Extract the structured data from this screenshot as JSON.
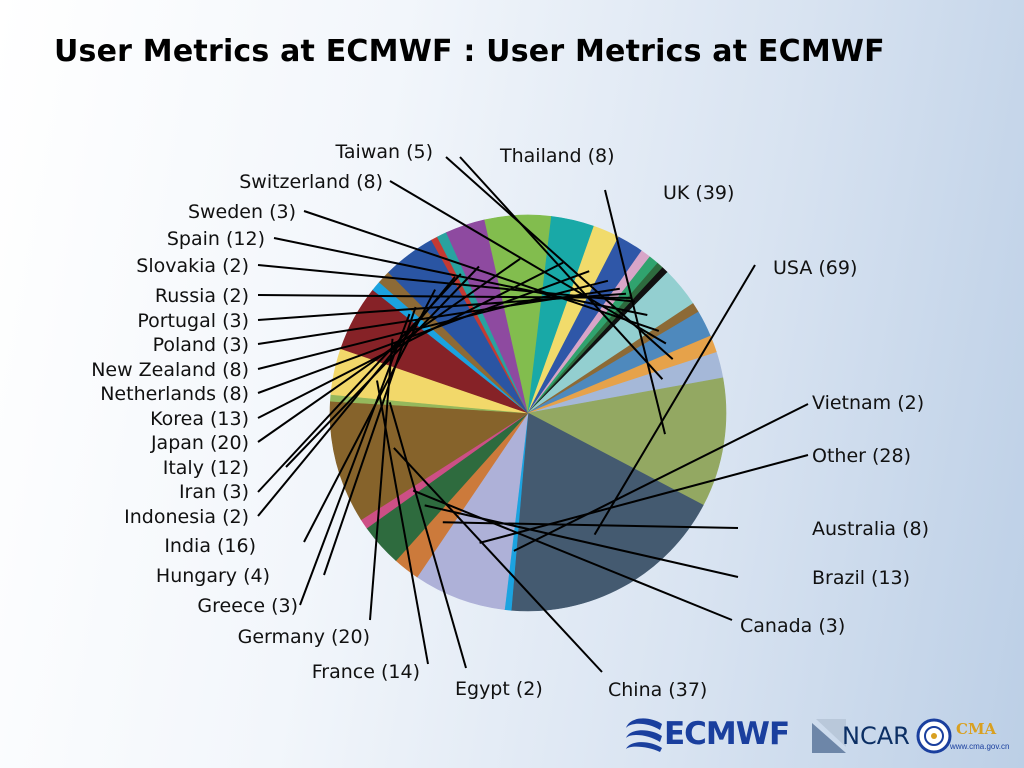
{
  "title": "User Metrics at ECMWF : User Metrics at ECMWF",
  "logos": {
    "ecmwf": "ECMWF",
    "ncar": "NCAR",
    "cma": "CMA",
    "cma_url": "www.cma.gov.cn"
  },
  "chart_data": {
    "type": "pie",
    "title": "",
    "start_angle_deg": 72,
    "slices": [
      {
        "label": "Thailand (8)",
        "value": 8,
        "color": "#a5b8d8"
      },
      {
        "label": "UK (39)",
        "value": 39,
        "color": "#93a862"
      },
      {
        "label": "USA (69)",
        "value": 69,
        "color": "#445a70"
      },
      {
        "label": "Vietnam (2)",
        "value": 2,
        "color": "#1ca3e0"
      },
      {
        "label": "Other (28)",
        "value": 28,
        "color": "#aeb1d8"
      },
      {
        "label": "Australia (8)",
        "value": 8,
        "color": "#cc7a3b"
      },
      {
        "label": "Brazil (13)",
        "value": 13,
        "color": "#2e6b3e"
      },
      {
        "label": "Canada (3)",
        "value": 3,
        "color": "#cd4f86"
      },
      {
        "label": "China (37)",
        "value": 37,
        "color": "#86632b"
      },
      {
        "label": "Egypt (2)",
        "value": 2,
        "color": "#95b85c"
      },
      {
        "label": "France (14)",
        "value": 14,
        "color": "#f2d86a"
      },
      {
        "label": "Germany (20)",
        "value": 20,
        "color": "#862227"
      },
      {
        "label": "Greece (3)",
        "value": 3,
        "color": "#1ba2df"
      },
      {
        "label": "Hungary (4)",
        "value": 4,
        "color": "#8d6a36"
      },
      {
        "label": "India (16)",
        "value": 16,
        "color": "#2a55a3"
      },
      {
        "label": "Indonesia (2)",
        "value": 2,
        "color": "#c43a33"
      },
      {
        "label": "Iran (3)",
        "value": 3,
        "color": "#29a2a0"
      },
      {
        "label": "Italy (12)",
        "value": 12,
        "color": "#8e4aa0"
      },
      {
        "label": "Japan (20)",
        "value": 20,
        "color": "#82bd4e"
      },
      {
        "label": "Korea (13)",
        "value": 13,
        "color": "#19a9a7"
      },
      {
        "label": "Netherlands (8)",
        "value": 8,
        "color": "#f1db6b"
      },
      {
        "label": "New Zealand (8)",
        "value": 8,
        "color": "#2f57a8"
      },
      {
        "label": "Poland (3)",
        "value": 3,
        "color": "#d8a5c8"
      },
      {
        "label": "Portugal (3)",
        "value": 3,
        "color": "#30a36e"
      },
      {
        "label": "Russia (2)",
        "value": 2,
        "color": "#2e6b3e"
      },
      {
        "label": "Slovakia (2)",
        "value": 2,
        "color": "#111111"
      },
      {
        "label": "Spain (12)",
        "value": 12,
        "color": "#93cfd0"
      },
      {
        "label": "Sweden (3)",
        "value": 3,
        "color": "#8d6a36"
      },
      {
        "label": "Switzerland (8)",
        "value": 8,
        "color": "#4e89bd"
      },
      {
        "label": "Taiwan (5)",
        "value": 5,
        "color": "#e6a24a"
      }
    ]
  }
}
